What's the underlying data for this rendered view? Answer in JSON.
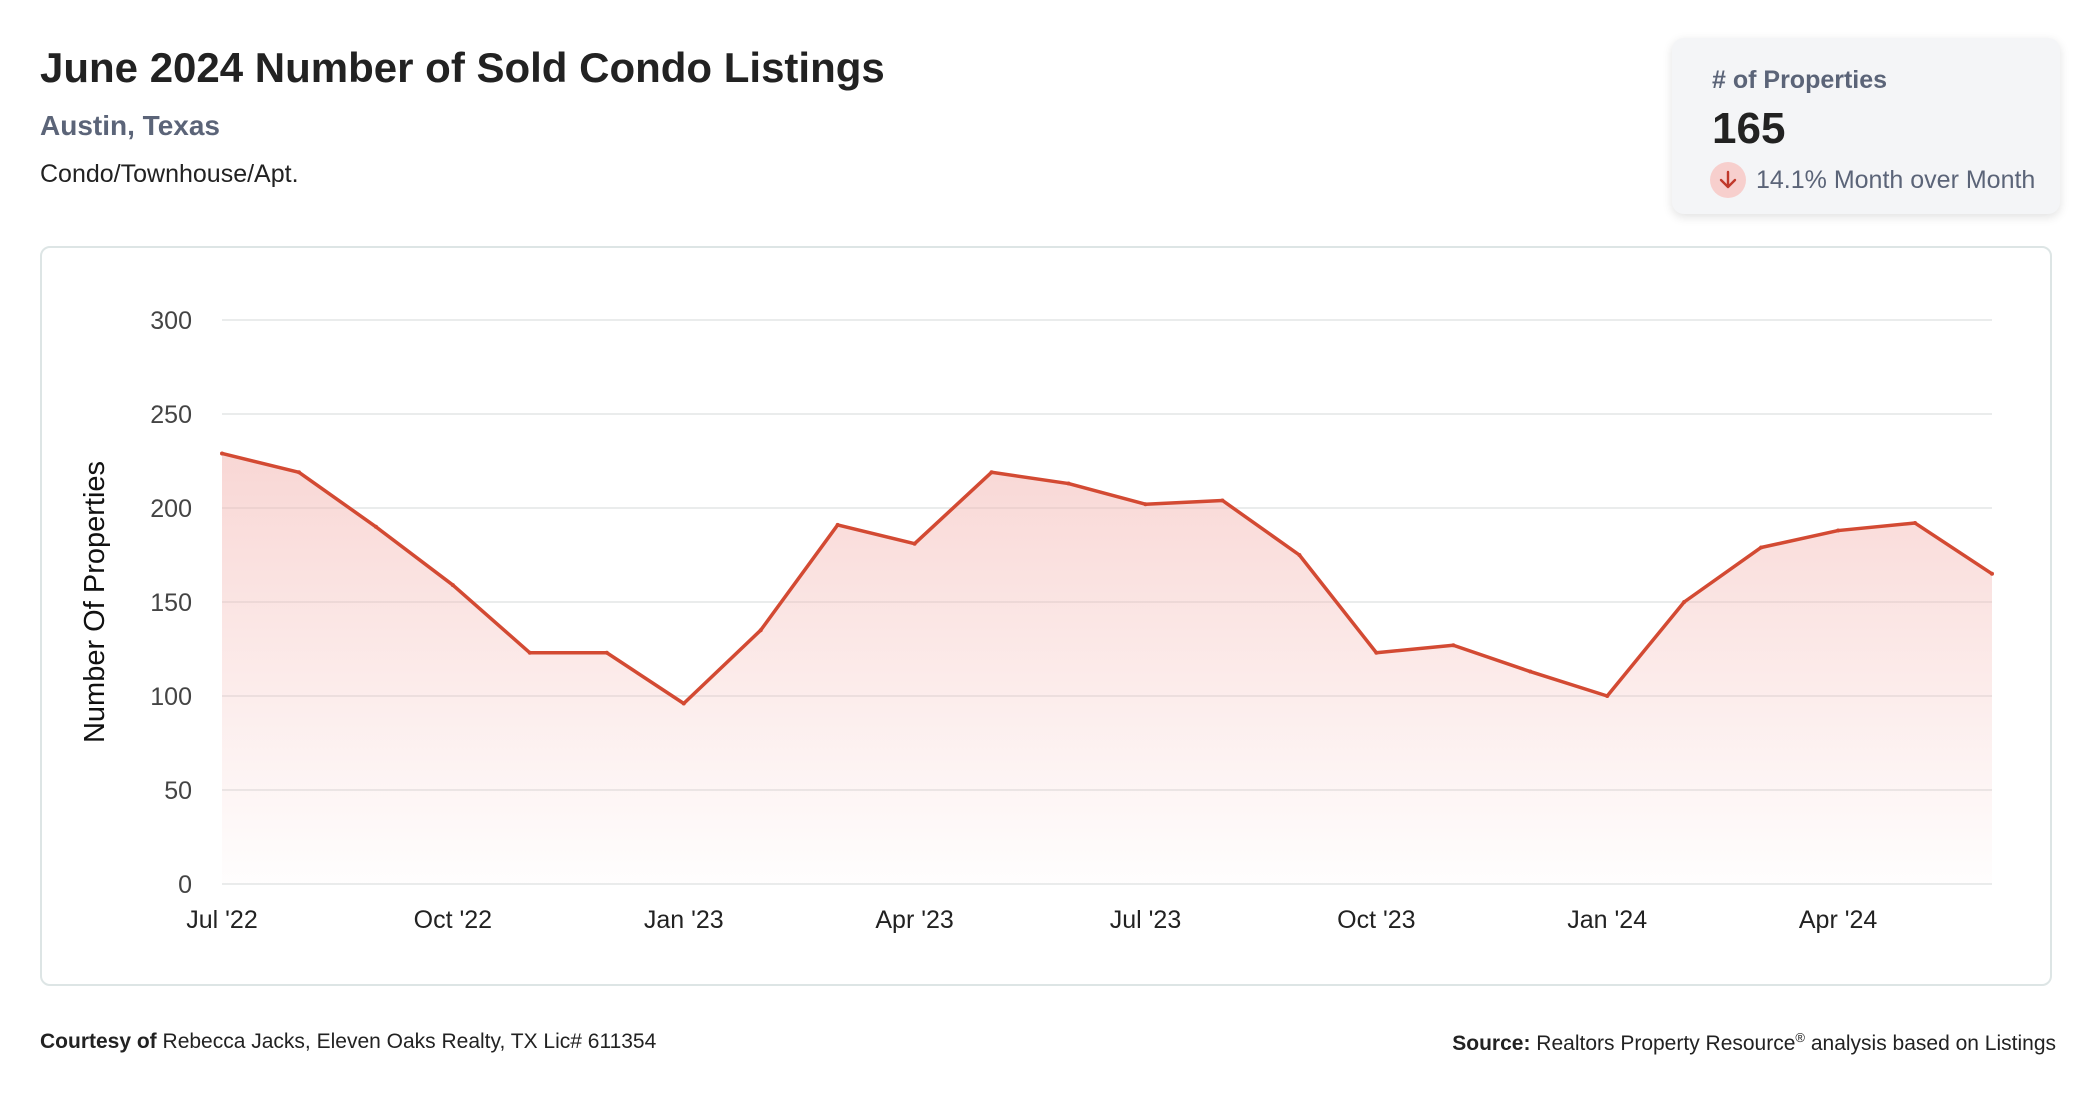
{
  "header": {
    "title": "June 2024 Number of Sold Condo Listings",
    "location": "Austin, Texas",
    "property_type": "Condo/Townhouse/Apt."
  },
  "kpi": {
    "label": "# of Properties",
    "value": "165",
    "change": "14.1% Month over Month",
    "direction": "down",
    "arrow_color": "#c0392b"
  },
  "colors": {
    "line": "#d34a33",
    "fill": "#f3b6b2",
    "grid": "#e3e6e6",
    "tick_text": "#444444"
  },
  "footer": {
    "courtesy_label": "Courtesy of",
    "courtesy_text": "Rebecca Jacks, Eleven Oaks Realty, TX Lic# 611354",
    "source_label": "Source:",
    "source_text": "Realtors Property Resource",
    "source_sup": "®",
    "source_suffix": "analysis based on Listings"
  },
  "chart_data": {
    "type": "area",
    "title": "",
    "xlabel": "",
    "ylabel": "Number Of Properties",
    "ylim": [
      0,
      300
    ],
    "yticks": [
      0,
      50,
      100,
      150,
      200,
      250,
      300
    ],
    "grid": true,
    "x": [
      "Jul '22",
      "Aug '22",
      "Sep '22",
      "Oct '22",
      "Nov '22",
      "Dec '22",
      "Jan '23",
      "Feb '23",
      "Mar '23",
      "Apr '23",
      "May '23",
      "Jun '23",
      "Jul '23",
      "Aug '23",
      "Sep '23",
      "Oct '23",
      "Nov '23",
      "Dec '23",
      "Jan '24",
      "Feb '24",
      "Mar '24",
      "Apr '24",
      "May '24",
      "Jun '24"
    ],
    "xtick_labels": [
      "Jul '22",
      "Oct '22",
      "Jan '23",
      "Apr '23",
      "Jul '23",
      "Oct '23",
      "Jan '24",
      "Apr '24"
    ],
    "series": [
      {
        "values": [
          229,
          219,
          190,
          159,
          123,
          123,
          96,
          135,
          191,
          181,
          219,
          213,
          202,
          204,
          175,
          123,
          127,
          113,
          100,
          150,
          179,
          188,
          192,
          165
        ]
      }
    ]
  }
}
